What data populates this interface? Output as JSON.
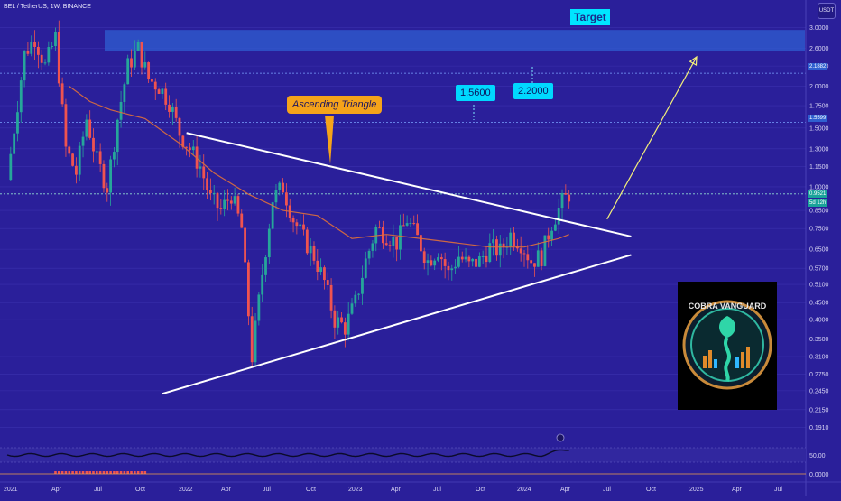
{
  "header": {
    "symbol_line": "BEL / TetherUS, 1W, BINANCE",
    "currency_button": "USDT"
  },
  "annotations": {
    "target": "Target",
    "ascending_triangle": "Ascending Triangle",
    "level_156": "1.5600",
    "level_220": "2.2000"
  },
  "price_tags": {
    "upper": "2.1882",
    "mid": "1.5599",
    "last": "0.9521",
    "countdown": "5d 12h"
  },
  "logo": {
    "text": "COBRA VANGUARD"
  },
  "colors": {
    "background": "#2a1f9a",
    "up": "#26a69a",
    "down": "#ef5350",
    "target_zone": "#2f5fd0",
    "callout": "#00e5ff",
    "triangle_label": "#f5a31a",
    "ma": "#e0703a",
    "arrow": "#f2ee7a"
  },
  "chart_data": {
    "type": "candlestick",
    "title": "BEL / TetherUS, 1W, BINANCE",
    "y_scale": "log",
    "y_ticks": [
      3.0,
      2.6,
      2.3,
      2.0,
      1.75,
      1.5,
      1.3,
      1.15,
      1.0,
      0.85,
      0.75,
      0.65,
      0.57,
      0.51,
      0.45,
      0.4,
      0.35,
      0.31,
      0.275,
      0.245,
      0.215,
      0.19
    ],
    "y_tick_labels": [
      "3.0000",
      "2.6000",
      "2.3000",
      "2.0000",
      "1.7500",
      "1.5000",
      "1.3000",
      "1.1500",
      "1.0000",
      "0.8500",
      "0.7500",
      "0.6500",
      "0.5700",
      "0.5100",
      "0.4500",
      "0.4000",
      "0.3500",
      "0.3100",
      "0.2750",
      "0.2450",
      "0.2150",
      "0.1910"
    ],
    "x_ticks": [
      "2021",
      "Apr",
      "Jul",
      "Oct",
      "2022",
      "Apr",
      "Jul",
      "Oct",
      "2023",
      "Apr",
      "Jul",
      "Oct",
      "2024",
      "Apr",
      "Jul",
      "Oct",
      "2025",
      "Apr",
      "Jul"
    ],
    "weekly_close_path": [
      [
        0,
        1.05
      ],
      [
        2,
        1.5
      ],
      [
        5,
        2.5
      ],
      [
        8,
        2.8
      ],
      [
        11,
        2.3
      ],
      [
        14,
        2.8
      ],
      [
        17,
        1.3
      ],
      [
        20,
        1.1
      ],
      [
        23,
        1.6
      ],
      [
        26,
        1.2
      ],
      [
        29,
        1.0
      ],
      [
        32,
        1.6
      ],
      [
        35,
        2.3
      ],
      [
        38,
        2.6
      ],
      [
        41,
        2.1
      ],
      [
        44,
        2.0
      ],
      [
        47,
        1.8
      ],
      [
        50,
        1.45
      ],
      [
        53,
        1.3
      ],
      [
        56,
        1.15
      ],
      [
        59,
        0.92
      ],
      [
        62,
        0.85
      ],
      [
        65,
        0.95
      ],
      [
        68,
        0.75
      ],
      [
        71,
        0.31
      ],
      [
        74,
        0.55
      ],
      [
        77,
        0.92
      ],
      [
        80,
        1.0
      ],
      [
        83,
        0.8
      ],
      [
        86,
        0.7
      ],
      [
        89,
        0.62
      ],
      [
        92,
        0.52
      ],
      [
        95,
        0.4
      ],
      [
        98,
        0.38
      ],
      [
        101,
        0.45
      ],
      [
        104,
        0.6
      ],
      [
        107,
        0.75
      ],
      [
        110,
        0.72
      ],
      [
        113,
        0.68
      ],
      [
        116,
        0.8
      ],
      [
        119,
        0.7
      ],
      [
        122,
        0.6
      ],
      [
        125,
        0.65
      ],
      [
        128,
        0.55
      ],
      [
        131,
        0.62
      ],
      [
        134,
        0.58
      ],
      [
        137,
        0.6
      ],
      [
        140,
        0.66
      ],
      [
        143,
        0.64
      ],
      [
        146,
        0.72
      ],
      [
        149,
        0.68
      ],
      [
        152,
        0.6
      ],
      [
        155,
        0.62
      ],
      [
        158,
        0.78
      ],
      [
        161,
        0.9
      ],
      [
        163,
        0.952
      ]
    ],
    "moving_average": [
      [
        18,
        2.0
      ],
      [
        24,
        1.8
      ],
      [
        30,
        1.7
      ],
      [
        40,
        1.6
      ],
      [
        50,
        1.35
      ],
      [
        60,
        1.1
      ],
      [
        70,
        0.95
      ],
      [
        80,
        0.85
      ],
      [
        90,
        0.82
      ],
      [
        100,
        0.7
      ],
      [
        110,
        0.72
      ],
      [
        120,
        0.7
      ],
      [
        130,
        0.68
      ],
      [
        140,
        0.66
      ],
      [
        150,
        0.66
      ],
      [
        160,
        0.7
      ],
      [
        163,
        0.72
      ]
    ],
    "target_zone": [
      2.55,
      2.95
    ],
    "levels": [
      2.1882,
      1.5599,
      0.9521
    ],
    "triangle": {
      "upper": [
        [
          52,
          1.45
        ],
        [
          181,
          0.71
        ]
      ],
      "lower": [
        [
          45,
          0.24
        ],
        [
          181,
          0.625
        ]
      ]
    },
    "projection_arrow": [
      [
        174,
        0.8
      ],
      [
        200,
        2.45
      ]
    ],
    "oscillator": {
      "level": "50.00",
      "zero": "0.0000"
    }
  }
}
